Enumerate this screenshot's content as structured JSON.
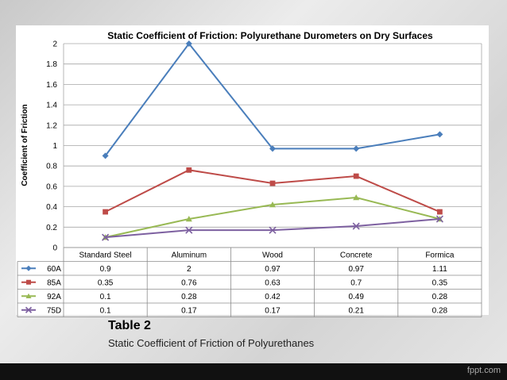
{
  "chart_data": {
    "type": "line",
    "title": "Static Coefficient of Friction: Polyurethane Durometers on Dry Surfaces",
    "xlabel": "",
    "ylabel": "Coefficient of Friction",
    "ylim": [
      0,
      2
    ],
    "yticks": [
      "0",
      "0.2",
      "0.4",
      "0.6",
      "0.8",
      "1",
      "1.2",
      "1.4",
      "1.6",
      "1.8",
      "2"
    ],
    "categories": [
      "Standard Steel",
      "Aluminum",
      "Wood",
      "Concrete",
      "Formica"
    ],
    "grid": true,
    "legend": "data-table",
    "series": [
      {
        "name": "60A",
        "values": [
          0.9,
          2,
          0.97,
          0.97,
          1.11
        ],
        "display": [
          "0.9",
          "2",
          "0.97",
          "0.97",
          "1.11"
        ],
        "color": "#4a7ebb",
        "marker": "diamond"
      },
      {
        "name": "85A",
        "values": [
          0.35,
          0.76,
          0.63,
          0.7,
          0.35
        ],
        "display": [
          "0.35",
          "0.76",
          "0.63",
          "0.7",
          "0.35"
        ],
        "color": "#be4b48",
        "marker": "square"
      },
      {
        "name": "92A",
        "values": [
          0.1,
          0.28,
          0.42,
          0.49,
          0.28
        ],
        "display": [
          "0.1",
          "0.28",
          "0.42",
          "0.49",
          "0.28"
        ],
        "color": "#98b954",
        "marker": "triangle"
      },
      {
        "name": "75D",
        "values": [
          0.1,
          0.17,
          0.17,
          0.21,
          0.28
        ],
        "display": [
          "0.1",
          "0.17",
          "0.17",
          "0.21",
          "0.28"
        ],
        "color": "#7d60a0",
        "marker": "x"
      }
    ]
  },
  "caption": {
    "title": "Table 2",
    "subtitle": "Static Coefficient of Friction of Polyurethanes"
  },
  "branding": "fppt.com"
}
